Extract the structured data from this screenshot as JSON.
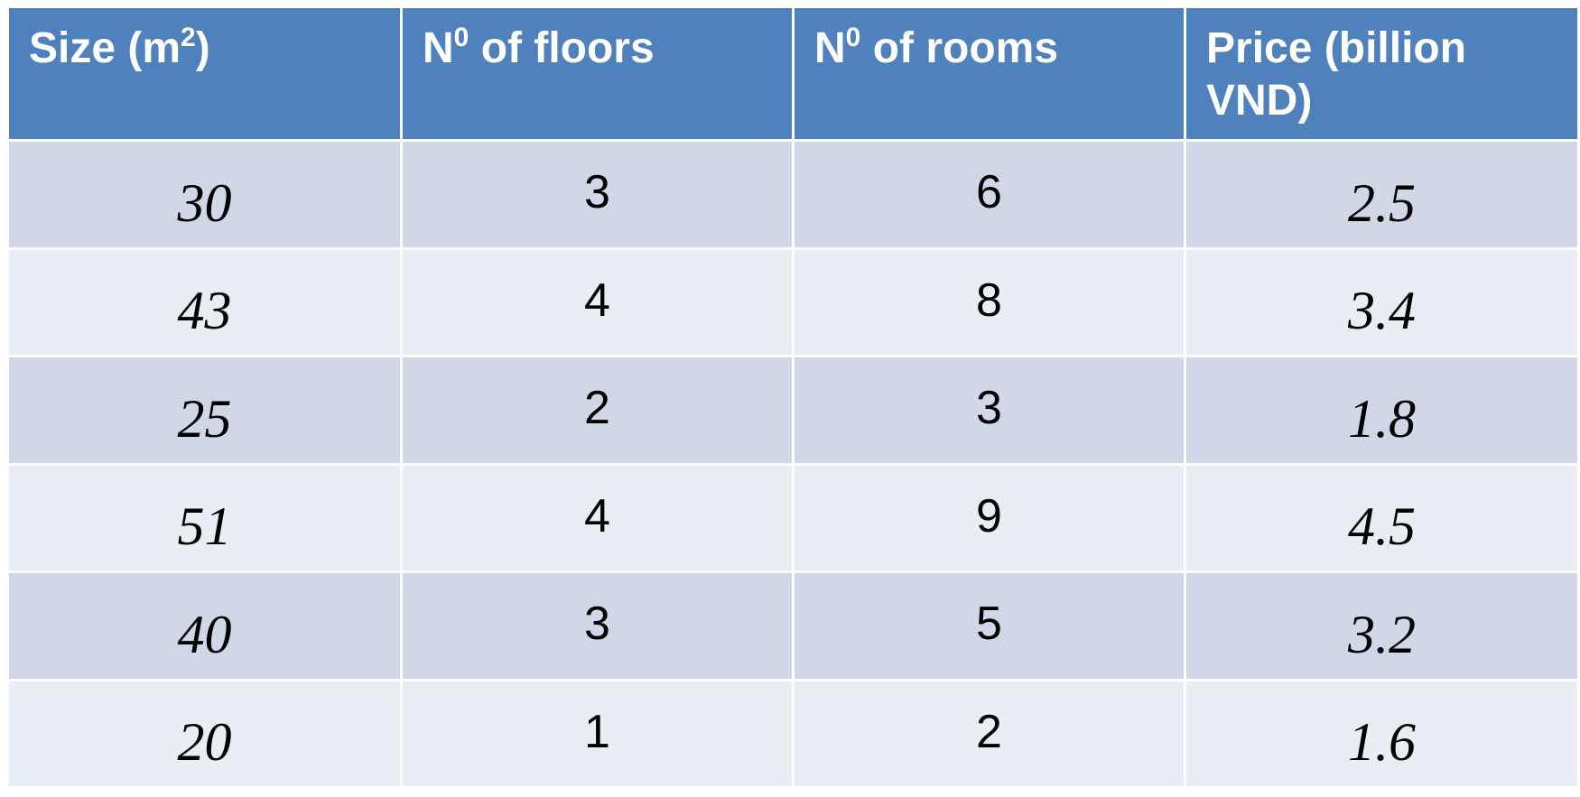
{
  "table": {
    "headers": {
      "size": {
        "prefix": "Size (m",
        "sup": "2",
        "suffix": ")"
      },
      "floors": {
        "prefix": "N",
        "sup": "0",
        "suffix": " of floors"
      },
      "rooms": {
        "prefix": "N",
        "sup": "0",
        "suffix": " of rooms"
      },
      "price": {
        "line1": "Price (billion",
        "line2": "VND)"
      }
    },
    "rows": [
      {
        "size": "30",
        "floors": "3",
        "rooms": "6",
        "price": "2.5"
      },
      {
        "size": "43",
        "floors": "4",
        "rooms": "8",
        "price": "3.4"
      },
      {
        "size": "25",
        "floors": "2",
        "rooms": "3",
        "price": "1.8"
      },
      {
        "size": "51",
        "floors": "4",
        "rooms": "9",
        "price": "4.5"
      },
      {
        "size": "40",
        "floors": "3",
        "rooms": "5",
        "price": "3.2"
      },
      {
        "size": "20",
        "floors": "1",
        "rooms": "2",
        "price": "1.6"
      }
    ],
    "colors": {
      "header_bg": "#4f81bd",
      "row_dark": "#d0d8e8",
      "row_light": "#e9edf4"
    }
  }
}
